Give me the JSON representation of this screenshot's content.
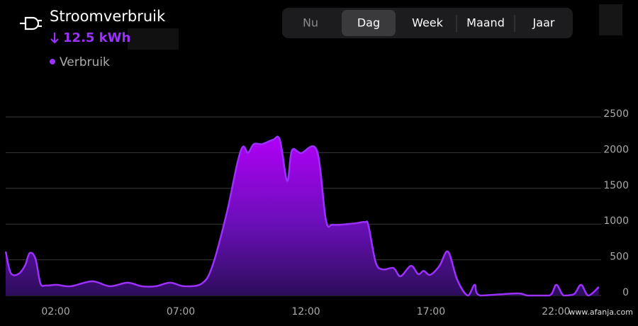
{
  "header": {
    "title": "Stroomverbruik",
    "total": "12.5 kWh"
  },
  "tabs": {
    "items": [
      "Nu",
      "Dag",
      "Week",
      "Maand",
      "Jaar"
    ],
    "selected": 1
  },
  "watermark": "www.afanja.com",
  "chart_data": {
    "type": "area",
    "x": [
      0,
      0.2,
      0.5,
      0.77,
      0.96,
      1.19,
      1.39,
      1.6,
      2.04,
      2.6,
      3.46,
      4.16,
      4.87,
      5.44,
      6,
      6.57,
      7.14,
      7.85,
      8.27,
      8.84,
      9.26,
      9.49,
      9.69,
      9.92,
      10.25,
      10.68,
      10.96,
      11.25,
      11.44,
      11.81,
      12.44,
      12.8,
      13.09,
      13.94,
      14.36,
      14.5,
      14.79,
      15.07,
      15.5,
      15.78,
      16.2,
      16.49,
      16.71,
      16.97,
      17.34,
      17.68,
      18.05,
      18.47,
      18.75,
      18.98,
      20.45,
      20.88,
      21.73,
      22.01,
      22.3,
      22.72,
      23,
      23.29,
      23.71
    ],
    "series": [
      {
        "name": "Verbruik",
        "color": "#9b30ff",
        "values": [
          615,
          317,
          300,
          417,
          595,
          516,
          170,
          140,
          150,
          130,
          200,
          130,
          180,
          130,
          130,
          180,
          130,
          170,
          420,
          1160,
          1855,
          2085,
          2000,
          2120,
          2120,
          2180,
          2180,
          1605,
          2030,
          1995,
          2030,
          1060,
          990,
          1010,
          1030,
          980,
          465,
          365,
          385,
          270,
          415,
          300,
          345,
          290,
          415,
          615,
          220,
          0,
          150,
          0,
          30,
          0,
          0,
          150,
          0,
          20,
          150,
          0,
          120
        ]
      }
    ],
    "xlim": [
      0,
      24
    ],
    "xticks": [
      {
        "value": 2,
        "label": "02:00"
      },
      {
        "value": 7,
        "label": "07:00"
      },
      {
        "value": 12,
        "label": "12:00"
      },
      {
        "value": 17,
        "label": "17:00"
      },
      {
        "value": 22,
        "label": "22:00"
      }
    ],
    "ylim": [
      0,
      2500
    ],
    "yticks": [
      0,
      500,
      1000,
      1500,
      2000,
      2500
    ],
    "grid": true
  }
}
